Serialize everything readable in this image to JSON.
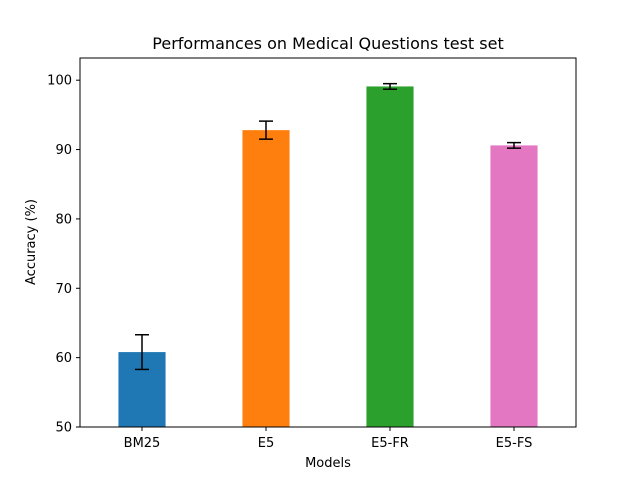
{
  "chart_data": {
    "type": "bar",
    "title": "Performances on Medical Questions test set",
    "xlabel": "Models",
    "ylabel": "Accuracy (%)",
    "categories": [
      "BM25",
      "E5",
      "E5-FR",
      "E5-FS"
    ],
    "values": [
      60.8,
      92.8,
      99.1,
      90.6
    ],
    "errors": [
      2.5,
      1.3,
      0.4,
      0.4
    ],
    "colors": [
      "#1f77b4",
      "#ff7f0e",
      "#2ca02c",
      "#e377c2"
    ],
    "ylim": [
      50,
      103.2
    ],
    "yticks": [
      50,
      60,
      70,
      80,
      90,
      100
    ],
    "grid": false
  }
}
